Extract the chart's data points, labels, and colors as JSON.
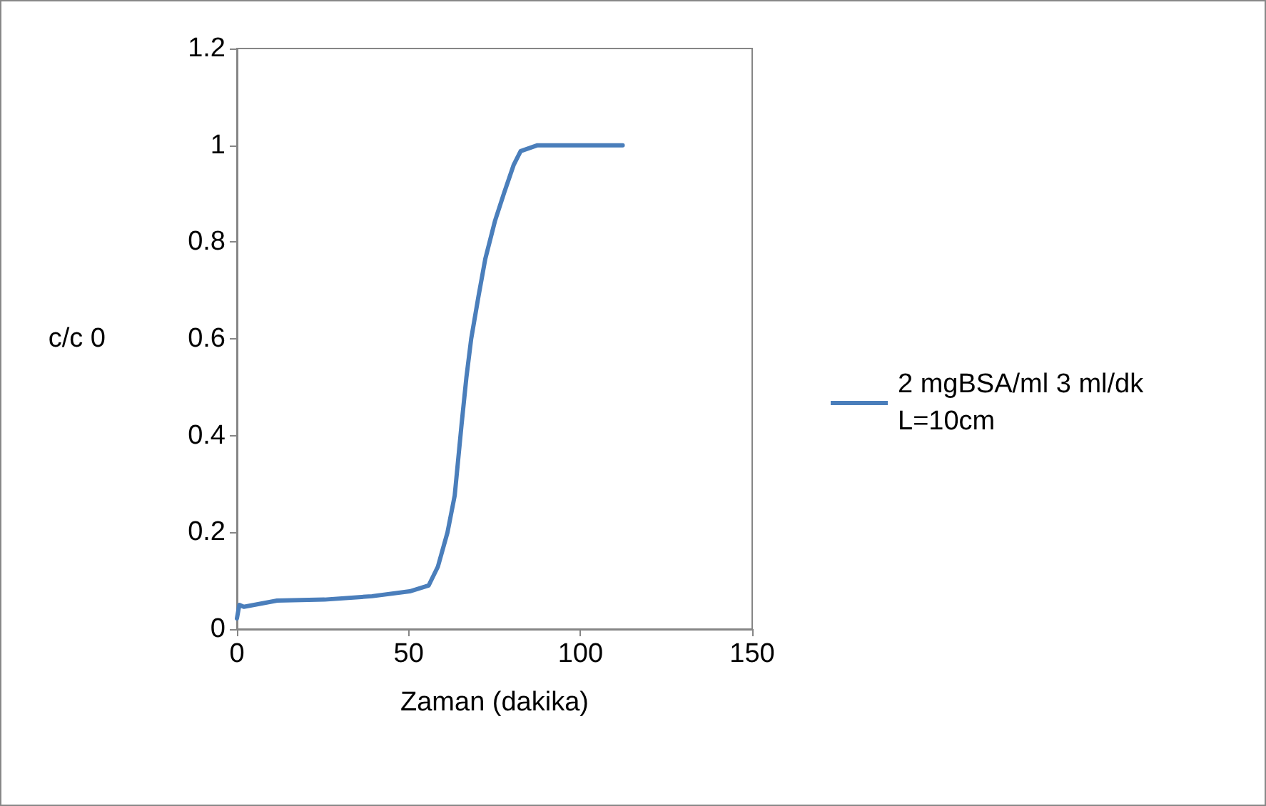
{
  "chart_data": {
    "type": "line",
    "xlabel": "Zaman (dakika)",
    "ylabel": "c/c 0",
    "xlim": [
      0,
      150
    ],
    "xticks": [
      0,
      50,
      100,
      150
    ],
    "ylim": [
      0,
      1.2
    ],
    "yticks": [
      0,
      0.2,
      0.4,
      0.6,
      0.8,
      1,
      1.2
    ],
    "grid": false,
    "legend": "right",
    "marker": "none",
    "line_style": "solid",
    "series": [
      {
        "name": "2 mgBSA/ml 3 ml/dk L=10cm",
        "color": "#4a7ebb",
        "x": [
          0,
          0.7,
          2,
          11.7,
          25.5,
          39.3,
          50.3,
          55.8,
          58.5,
          61.3,
          63.4,
          65.4,
          66.8,
          68.2,
          70.3,
          72.3,
          75.1,
          77.8,
          80.6,
          82.6,
          87.5,
          112.3
        ],
        "values": [
          0.022,
          0.05,
          0.046,
          0.059,
          0.061,
          0.068,
          0.078,
          0.09,
          0.129,
          0.2,
          0.276,
          0.423,
          0.52,
          0.6,
          0.687,
          0.765,
          0.843,
          0.902,
          0.96,
          0.988,
          1.0,
          1.0
        ]
      }
    ]
  }
}
